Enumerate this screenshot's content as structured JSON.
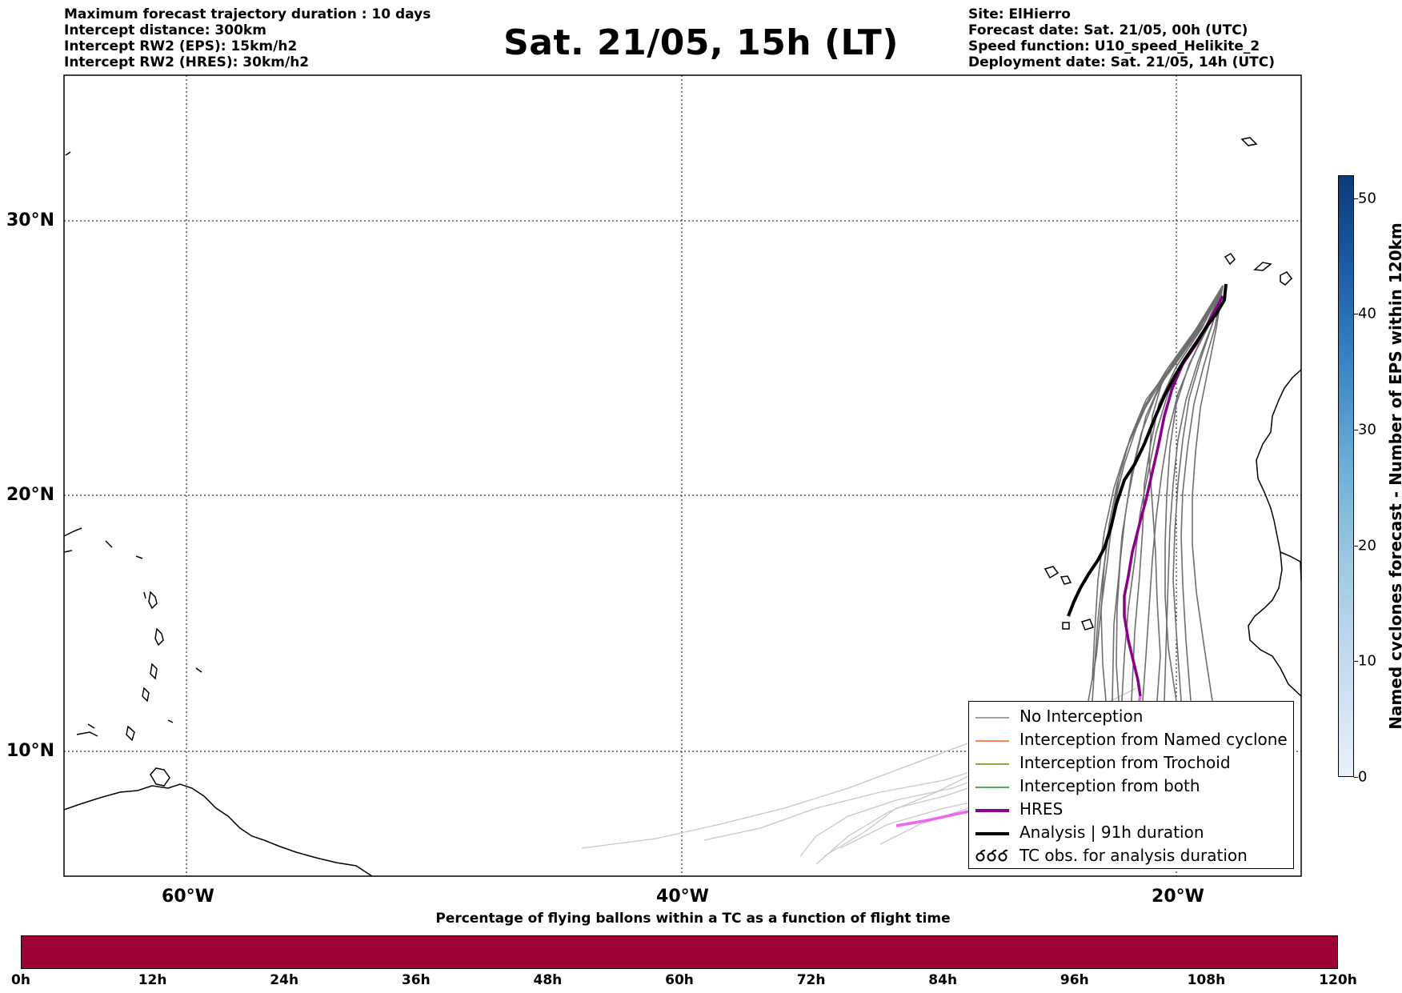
{
  "header_left": [
    "Maximum forecast trajectory duration : 10 days",
    "Intercept distance: 300km",
    "Intercept RW2 (EPS):  15km/h2",
    "Intercept RW2 (HRES): 30km/h2"
  ],
  "title": "Sat. 21/05, 15h (LT)",
  "header_right": [
    "Site: ElHierro",
    "Forecast date: Sat. 21/05, 00h (UTC)",
    "Speed function: U10_speed_Helikite_2",
    "Deployment date: Sat. 21/05, 14h (UTC)"
  ],
  "map": {
    "lat_labels": [
      "30°N",
      "20°N",
      "10°N"
    ],
    "lon_labels": [
      "60°W",
      "40°W",
      "20°W"
    ],
    "gridlines": "dotted"
  },
  "legend": {
    "items": [
      {
        "label": "No Interception",
        "color": "#808080",
        "icon": "thin-line"
      },
      {
        "label": "Interception from Named cyclone",
        "color": "#ff5a1f",
        "icon": "thin-line"
      },
      {
        "label": "Interception from Trochoid",
        "color": "#808000",
        "icon": "thin-line"
      },
      {
        "label": "Interception from both",
        "color": "#1e8c1e",
        "icon": "thin-line"
      },
      {
        "label": "HRES",
        "color": "#8b008b",
        "icon": "thick-line"
      },
      {
        "label": "Analysis | 91h duration",
        "color": "#000000",
        "icon": "thick-line"
      },
      {
        "label": "TC obs. for analysis duration",
        "color": "#000000",
        "icon": "tc-symbols"
      }
    ]
  },
  "colorbar": {
    "label": "Named cyclones forecast - Number of EPS within 120km",
    "ticks": [
      "0",
      "10",
      "20",
      "30",
      "40",
      "50"
    ],
    "range": [
      0,
      52
    ]
  },
  "flight_time_bar": {
    "title": "Percentage of flying ballons within a TC as a function of flight time",
    "ticks": [
      "0h",
      "12h",
      "24h",
      "36h",
      "48h",
      "60h",
      "72h",
      "84h",
      "96h",
      "108h",
      "120h"
    ],
    "color": "#9e0038"
  },
  "trajectory_colors": {
    "eps_no_interception": "#6e6e6e",
    "eps_after_forecast": "#c8c8c8",
    "hres": "#8b008b",
    "hres_late": "#ee66ee",
    "analysis": "#000000"
  }
}
